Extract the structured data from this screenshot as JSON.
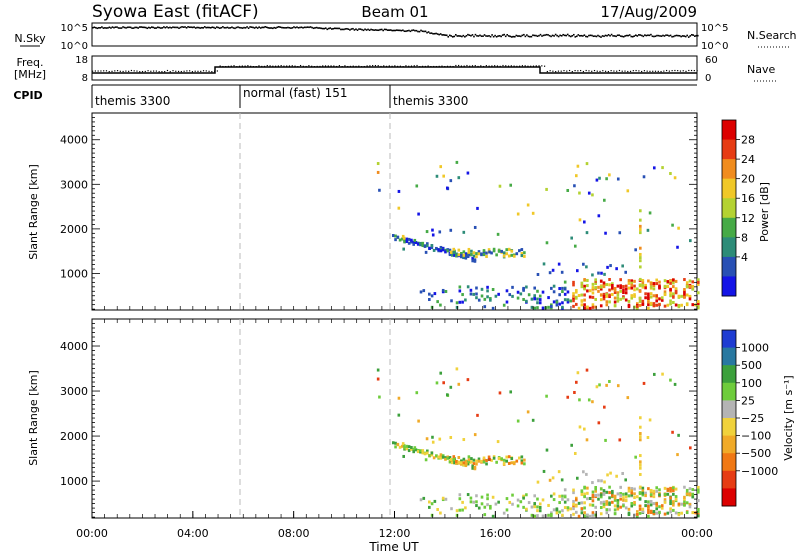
{
  "header": {
    "station": "Syowa East (fitACF)",
    "beam": "Beam 01",
    "date": "17/Aug/2009"
  },
  "nsky_panel": {
    "left_label": "N.Sky",
    "right_label": "N.Search",
    "left_ticks": [
      "10^5",
      "10^0"
    ],
    "right_ticks": [
      "10^5",
      "10^0"
    ]
  },
  "freq_panel": {
    "left_label_line1": "Freq.",
    "left_label_line2": "[MHz]",
    "right_label": "Nave",
    "left_ticks": [
      "18",
      "8"
    ],
    "right_ticks": [
      "60",
      "0"
    ]
  },
  "cpid_panel": {
    "label": "CPID",
    "segments": [
      {
        "label": "themis 3300",
        "start_hour": 0
      },
      {
        "label": "normal (fast) 151",
        "start_hour": 6
      },
      {
        "label": "themis 3300",
        "start_hour": 12
      }
    ]
  },
  "chart_data": [
    {
      "type": "heatmap",
      "name": "power",
      "ylabel": "Slant Range [km]",
      "ylim": [
        180,
        4600
      ],
      "yticks": [
        "1000",
        "2000",
        "3000",
        "4000"
      ],
      "colorbar_label": "Power [dB]",
      "colorbar_ticks": [
        "4",
        "8",
        "12",
        "16",
        "20",
        "24",
        "28"
      ],
      "colors": [
        "#1414e6",
        "#2850b4",
        "#2d8c78",
        "#46aa46",
        "#b4d232",
        "#f0c828",
        "#f08c1e",
        "#e63c14",
        "#dc0000"
      ]
    },
    {
      "type": "heatmap",
      "name": "velocity",
      "ylabel": "Slant Range [km]",
      "ylim": [
        180,
        4600
      ],
      "yticks": [
        "1000",
        "2000",
        "3000",
        "4000"
      ],
      "colorbar_label": "Velocity [m s⁻¹]",
      "colorbar_ticks": [
        "1000",
        "500",
        "100",
        "25",
        "−25",
        "−100",
        "−500",
        "−1000"
      ],
      "colors": [
        "#1e3cd2",
        "#2878a0",
        "#3ca03c",
        "#6ecc3c",
        "#b4b4b4",
        "#f0d23c",
        "#f0aa28",
        "#f07814",
        "#e63c14",
        "#dc0000"
      ]
    }
  ],
  "time_axis": {
    "xlabel": "Time UT",
    "xlim_hours": [
      0,
      24
    ],
    "ticks": [
      "00:00",
      "04:00",
      "08:00",
      "12:00",
      "16:00",
      "20:00",
      "00:00"
    ]
  }
}
